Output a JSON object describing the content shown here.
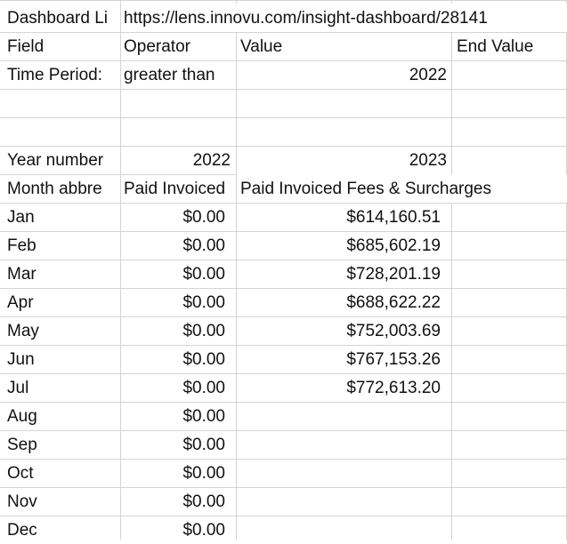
{
  "sheet": {
    "row1": {
      "label": "Dashboard Li",
      "url": "https://lens.innovu.com/insight-dashboard/28141"
    },
    "filter_header": {
      "field": "Field",
      "operator": "Operator",
      "value": "Value",
      "end_value": "End Value"
    },
    "filter_row": {
      "field": "Time Period:",
      "operator": "greater than",
      "value": "2022",
      "end_value": ""
    },
    "year_row": {
      "label": "Year number",
      "col_b": "2022",
      "col_c": "2023"
    },
    "header_row": {
      "label": "Month abbre",
      "col_b": "Paid Invoiced",
      "col_c": "Paid Invoiced Fees & Surcharges"
    },
    "months": [
      {
        "month": "Jan",
        "y2022": "$0.00",
        "y2023": "$614,160.51"
      },
      {
        "month": "Feb",
        "y2022": "$0.00",
        "y2023": "$685,602.19"
      },
      {
        "month": "Mar",
        "y2022": "$0.00",
        "y2023": "$728,201.19"
      },
      {
        "month": "Apr",
        "y2022": "$0.00",
        "y2023": "$688,622.22"
      },
      {
        "month": "May",
        "y2022": "$0.00",
        "y2023": "$752,003.69"
      },
      {
        "month": "Jun",
        "y2022": "$0.00",
        "y2023": "$767,153.26"
      },
      {
        "month": "Jul",
        "y2022": "$0.00",
        "y2023": "$772,613.20"
      },
      {
        "month": "Aug",
        "y2022": "$0.00",
        "y2023": ""
      },
      {
        "month": "Sep",
        "y2022": "$0.00",
        "y2023": ""
      },
      {
        "month": "Oct",
        "y2022": "$0.00",
        "y2023": ""
      },
      {
        "month": "Nov",
        "y2022": "$0.00",
        "y2023": ""
      },
      {
        "month": "Dec",
        "y2022": "$0.00",
        "y2023": ""
      }
    ]
  }
}
